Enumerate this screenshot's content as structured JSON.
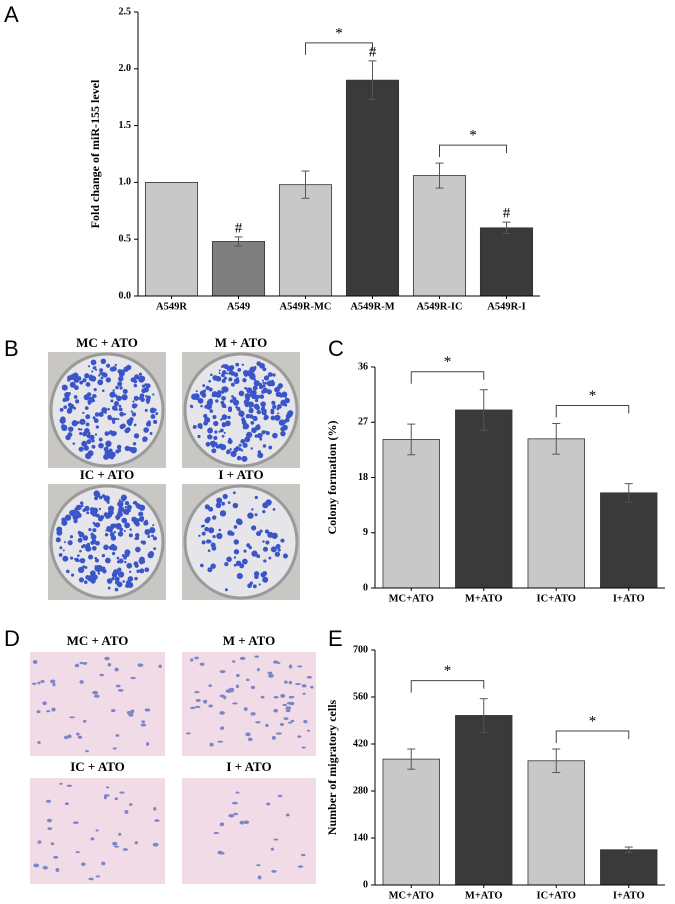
{
  "panel_labels": [
    "A",
    "B",
    "C",
    "D",
    "E"
  ],
  "image_panels": [
    {
      "labels": [
        "MC + ATO",
        "M + ATO",
        "IC + ATO",
        "I + ATO"
      ]
    },
    {
      "labels": [
        "MC + ATO",
        "M + ATO",
        "IC + ATO",
        "I + ATO"
      ]
    }
  ],
  "chart_data": [
    {
      "type": "bar",
      "ylabel": "Fold  change of miR-155 level",
      "categories": [
        "A549R",
        "A549",
        "A549R-MC",
        "A549R-M",
        "A549R-IC",
        "A549R-I"
      ],
      "values": [
        1.0,
        0.48,
        0.98,
        1.9,
        1.06,
        0.6
      ],
      "errors": [
        0,
        0.04,
        0.12,
        0.17,
        0.11,
        0.05
      ],
      "colors": [
        "#c8c8c8",
        "#7f7f7f",
        "#c8c8c8",
        "#3a3a3a",
        "#c8c8c8",
        "#3a3a3a"
      ],
      "ylim": [
        0,
        2.5
      ],
      "yticks": [
        {
          "value": 0,
          "label": "0.0"
        },
        {
          "value": 0.5,
          "label": "0.5"
        },
        {
          "value": 1,
          "label": "1.0"
        },
        {
          "value": 1.5,
          "label": "1.5"
        },
        {
          "value": 2,
          "label": "2.0"
        },
        {
          "value": 2.5,
          "label": "2.5"
        }
      ],
      "annotations": [
        {
          "text": "#",
          "x": "A549"
        },
        {
          "text": "#",
          "x": "A549R-M"
        },
        {
          "text": "#",
          "x": "A549R-I"
        }
      ],
      "brackets": [
        {
          "text": "*",
          "from": "A549R-MC",
          "to": "A549R-M"
        },
        {
          "text": "*",
          "from": "A549R-IC",
          "to": "A549R-I"
        }
      ]
    },
    {
      "type": "bar",
      "ylabel": "Colony formation (%)",
      "categories": [
        "MC+ATO",
        "M+ATO",
        "IC+ATO",
        "I+ATO"
      ],
      "values": [
        24.2,
        29.0,
        24.3,
        15.5
      ],
      "errors": [
        2.5,
        3.3,
        2.5,
        1.5
      ],
      "colors": [
        "#c8c8c8",
        "#3a3a3a",
        "#c8c8c8",
        "#3a3a3a"
      ],
      "ylim": [
        0,
        36
      ],
      "yticks": [
        0,
        9,
        18,
        27,
        36
      ],
      "annotations": [],
      "brackets": [
        {
          "text": "*",
          "from": "MC+ATO",
          "to": "M+ATO"
        },
        {
          "text": "*",
          "from": "IC+ATO",
          "to": "I+ATO"
        }
      ]
    },
    {
      "type": "bar",
      "ylabel": "Number of migratory cells",
      "categories": [
        "MC+ATO",
        "M+ATO",
        "IC+ATO",
        "I+ATO"
      ],
      "values": [
        375,
        505,
        370,
        105
      ],
      "errors": [
        30,
        50,
        35,
        8
      ],
      "colors": [
        "#c8c8c8",
        "#3a3a3a",
        "#c8c8c8",
        "#3a3a3a"
      ],
      "ylim": [
        0,
        700
      ],
      "yticks": [
        0,
        140,
        280,
        420,
        560,
        700
      ],
      "annotations": [],
      "brackets": [
        {
          "text": "*",
          "from": "MC+ATO",
          "to": "M+ATO"
        },
        {
          "text": "*",
          "from": "IC+ATO",
          "to": "I+ATO"
        }
      ]
    }
  ]
}
